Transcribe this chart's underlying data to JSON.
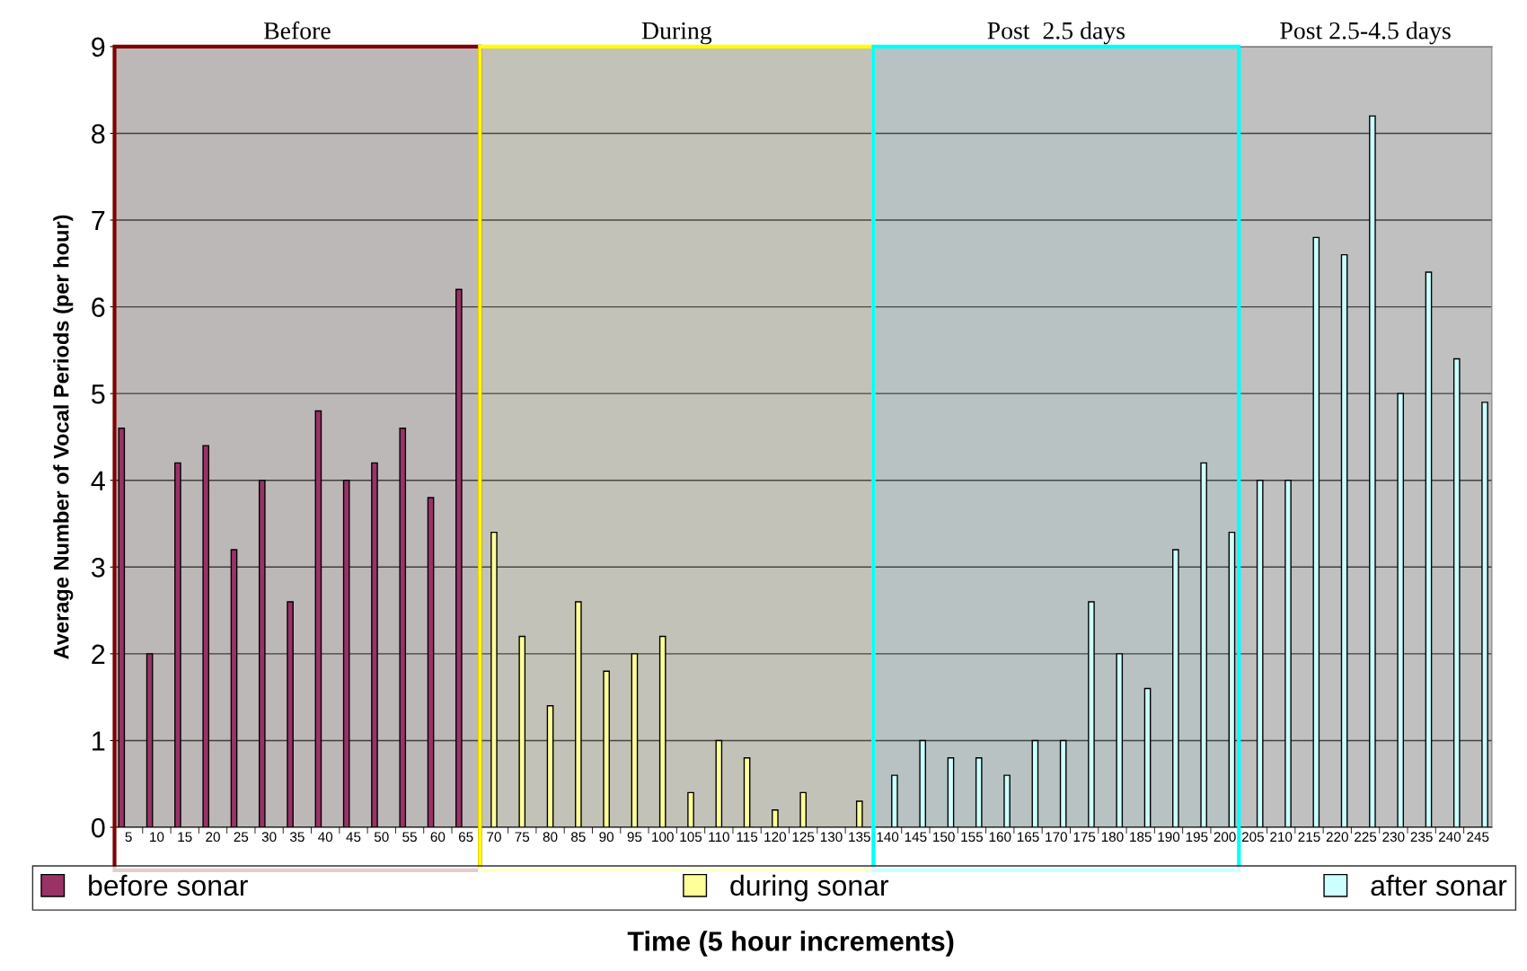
{
  "chart_data": {
    "type": "bar",
    "xlabel": "Time (5 hour increments)",
    "ylabel": "Average Number of Vocal Periods (per hour)",
    "categories": [
      "5",
      "10",
      "15",
      "20",
      "25",
      "30",
      "35",
      "40",
      "45",
      "50",
      "55",
      "60",
      "65",
      "70",
      "75",
      "80",
      "85",
      "90",
      "95",
      "100",
      "105",
      "110",
      "115",
      "120",
      "125",
      "130",
      "135",
      "140",
      "145",
      "150",
      "155",
      "160",
      "165",
      "170",
      "175",
      "180",
      "185",
      "190",
      "195",
      "200",
      "205",
      "210",
      "215",
      "220",
      "225",
      "230",
      "235",
      "240",
      "245"
    ],
    "series": [
      {
        "name": "before sonar",
        "color": "#993366",
        "values": [
          4.6,
          2.0,
          4.2,
          4.4,
          3.2,
          4.0,
          2.6,
          4.8,
          4.0,
          4.2,
          4.6,
          3.8,
          6.2,
          null,
          null,
          null,
          null,
          null,
          null,
          null,
          null,
          null,
          null,
          null,
          null,
          null,
          null,
          null,
          null,
          null,
          null,
          null,
          null,
          null,
          null,
          null,
          null,
          null,
          null,
          null,
          null,
          null,
          null,
          null,
          null,
          null,
          null,
          null,
          null
        ]
      },
      {
        "name": "during sonar",
        "color": "#ffff99",
        "values": [
          null,
          null,
          null,
          null,
          null,
          null,
          null,
          null,
          null,
          null,
          null,
          null,
          null,
          3.4,
          2.2,
          1.4,
          2.6,
          1.8,
          2.0,
          2.2,
          0.4,
          1.0,
          0.8,
          0.2,
          0.4,
          null,
          0.3,
          null,
          null,
          null,
          null,
          null,
          null,
          null,
          null,
          null,
          null,
          null,
          null,
          null,
          null,
          null,
          null,
          null,
          null,
          null,
          null,
          null,
          null
        ]
      },
      {
        "name": "after sonar",
        "color": "#ccffff",
        "values": [
          null,
          null,
          null,
          null,
          null,
          null,
          null,
          null,
          null,
          null,
          null,
          null,
          null,
          null,
          null,
          null,
          null,
          null,
          null,
          null,
          null,
          null,
          null,
          null,
          null,
          null,
          null,
          0.6,
          1.0,
          0.8,
          0.8,
          0.6,
          1.0,
          1.0,
          2.6,
          2.0,
          1.6,
          3.2,
          4.2,
          3.4,
          4.0,
          4.0,
          6.8,
          6.6,
          8.2,
          5.0,
          6.4,
          5.4,
          4.9
        ]
      }
    ],
    "ylim": [
      0,
      9
    ],
    "yticks": [
      0,
      1,
      2,
      3,
      4,
      5,
      6,
      7,
      8,
      9
    ],
    "grid": "y",
    "legend": "bottom",
    "bands": [
      {
        "axis": "x",
        "from": "5",
        "to": "65",
        "label": "Before",
        "color": "#800000"
      },
      {
        "axis": "x",
        "from": "70",
        "to": "135",
        "label": "During",
        "color": "#ffff00"
      },
      {
        "axis": "x",
        "from": "140",
        "to": "200",
        "label": "Post  2.5 days",
        "color": "#00ffff"
      }
    ],
    "annotations": [
      "Post 2.5-4.5 days"
    ]
  }
}
